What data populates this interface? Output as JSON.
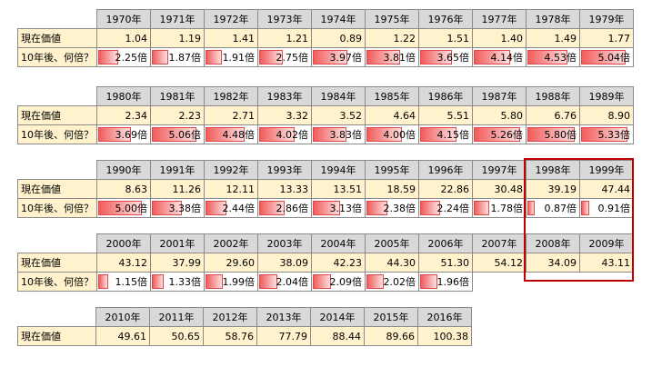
{
  "row_labels": {
    "value": "現在価値",
    "multiplier": "10年後、何倍？"
  },
  "multiplier_suffix": "倍",
  "blocks": [
    {
      "years": [
        "1970年",
        "1971年",
        "1972年",
        "1973年",
        "1974年",
        "1975年",
        "1976年",
        "1977年",
        "1978年",
        "1979年"
      ],
      "values": [
        "1.04",
        "1.19",
        "1.41",
        "1.21",
        "0.89",
        "1.22",
        "1.51",
        "1.40",
        "1.49",
        "1.77"
      ],
      "multipliers": [
        2.25,
        1.87,
        1.91,
        2.75,
        3.97,
        3.81,
        3.65,
        4.14,
        4.53,
        5.04
      ]
    },
    {
      "years": [
        "1980年",
        "1981年",
        "1982年",
        "1983年",
        "1984年",
        "1985年",
        "1986年",
        "1987年",
        "1988年",
        "1989年"
      ],
      "values": [
        "2.34",
        "2.23",
        "2.71",
        "3.32",
        "3.52",
        "4.64",
        "5.51",
        "5.80",
        "6.76",
        "8.90"
      ],
      "multipliers": [
        3.69,
        5.06,
        4.48,
        4.02,
        3.83,
        4.0,
        4.15,
        5.26,
        5.8,
        5.33
      ]
    },
    {
      "years": [
        "1990年",
        "1991年",
        "1992年",
        "1993年",
        "1994年",
        "1995年",
        "1996年",
        "1997年",
        "1998年",
        "1999年"
      ],
      "values": [
        "8.63",
        "11.26",
        "12.11",
        "13.33",
        "13.51",
        "18.59",
        "22.86",
        "30.48",
        "39.19",
        "47.44"
      ],
      "multipliers": [
        5.0,
        3.38,
        2.44,
        2.86,
        3.13,
        2.38,
        2.24,
        1.78,
        0.87,
        0.91
      ]
    },
    {
      "years": [
        "2000年",
        "2001年",
        "2002年",
        "2003年",
        "2004年",
        "2005年",
        "2006年",
        "2007年",
        "2008年",
        "2009年"
      ],
      "values": [
        "43.12",
        "37.99",
        "29.60",
        "38.09",
        "42.23",
        "44.30",
        "51.30",
        "54.12",
        "34.09",
        "43.11"
      ],
      "multipliers": [
        1.15,
        1.33,
        1.99,
        2.04,
        2.09,
        2.02,
        1.96
      ]
    },
    {
      "years": [
        "2010年",
        "2011年",
        "2012年",
        "2013年",
        "2014年",
        "2015年",
        "2016年"
      ],
      "values": [
        "49.61",
        "50.65",
        "58.76",
        "77.79",
        "88.44",
        "89.66",
        "100.38"
      ],
      "multipliers": []
    }
  ],
  "bar_scale_max": 5.4,
  "colors": {
    "header": "#d9d9d9",
    "value_fill": "#fff2cc",
    "bar": "#f25c5c",
    "highlight": "#c00000"
  }
}
